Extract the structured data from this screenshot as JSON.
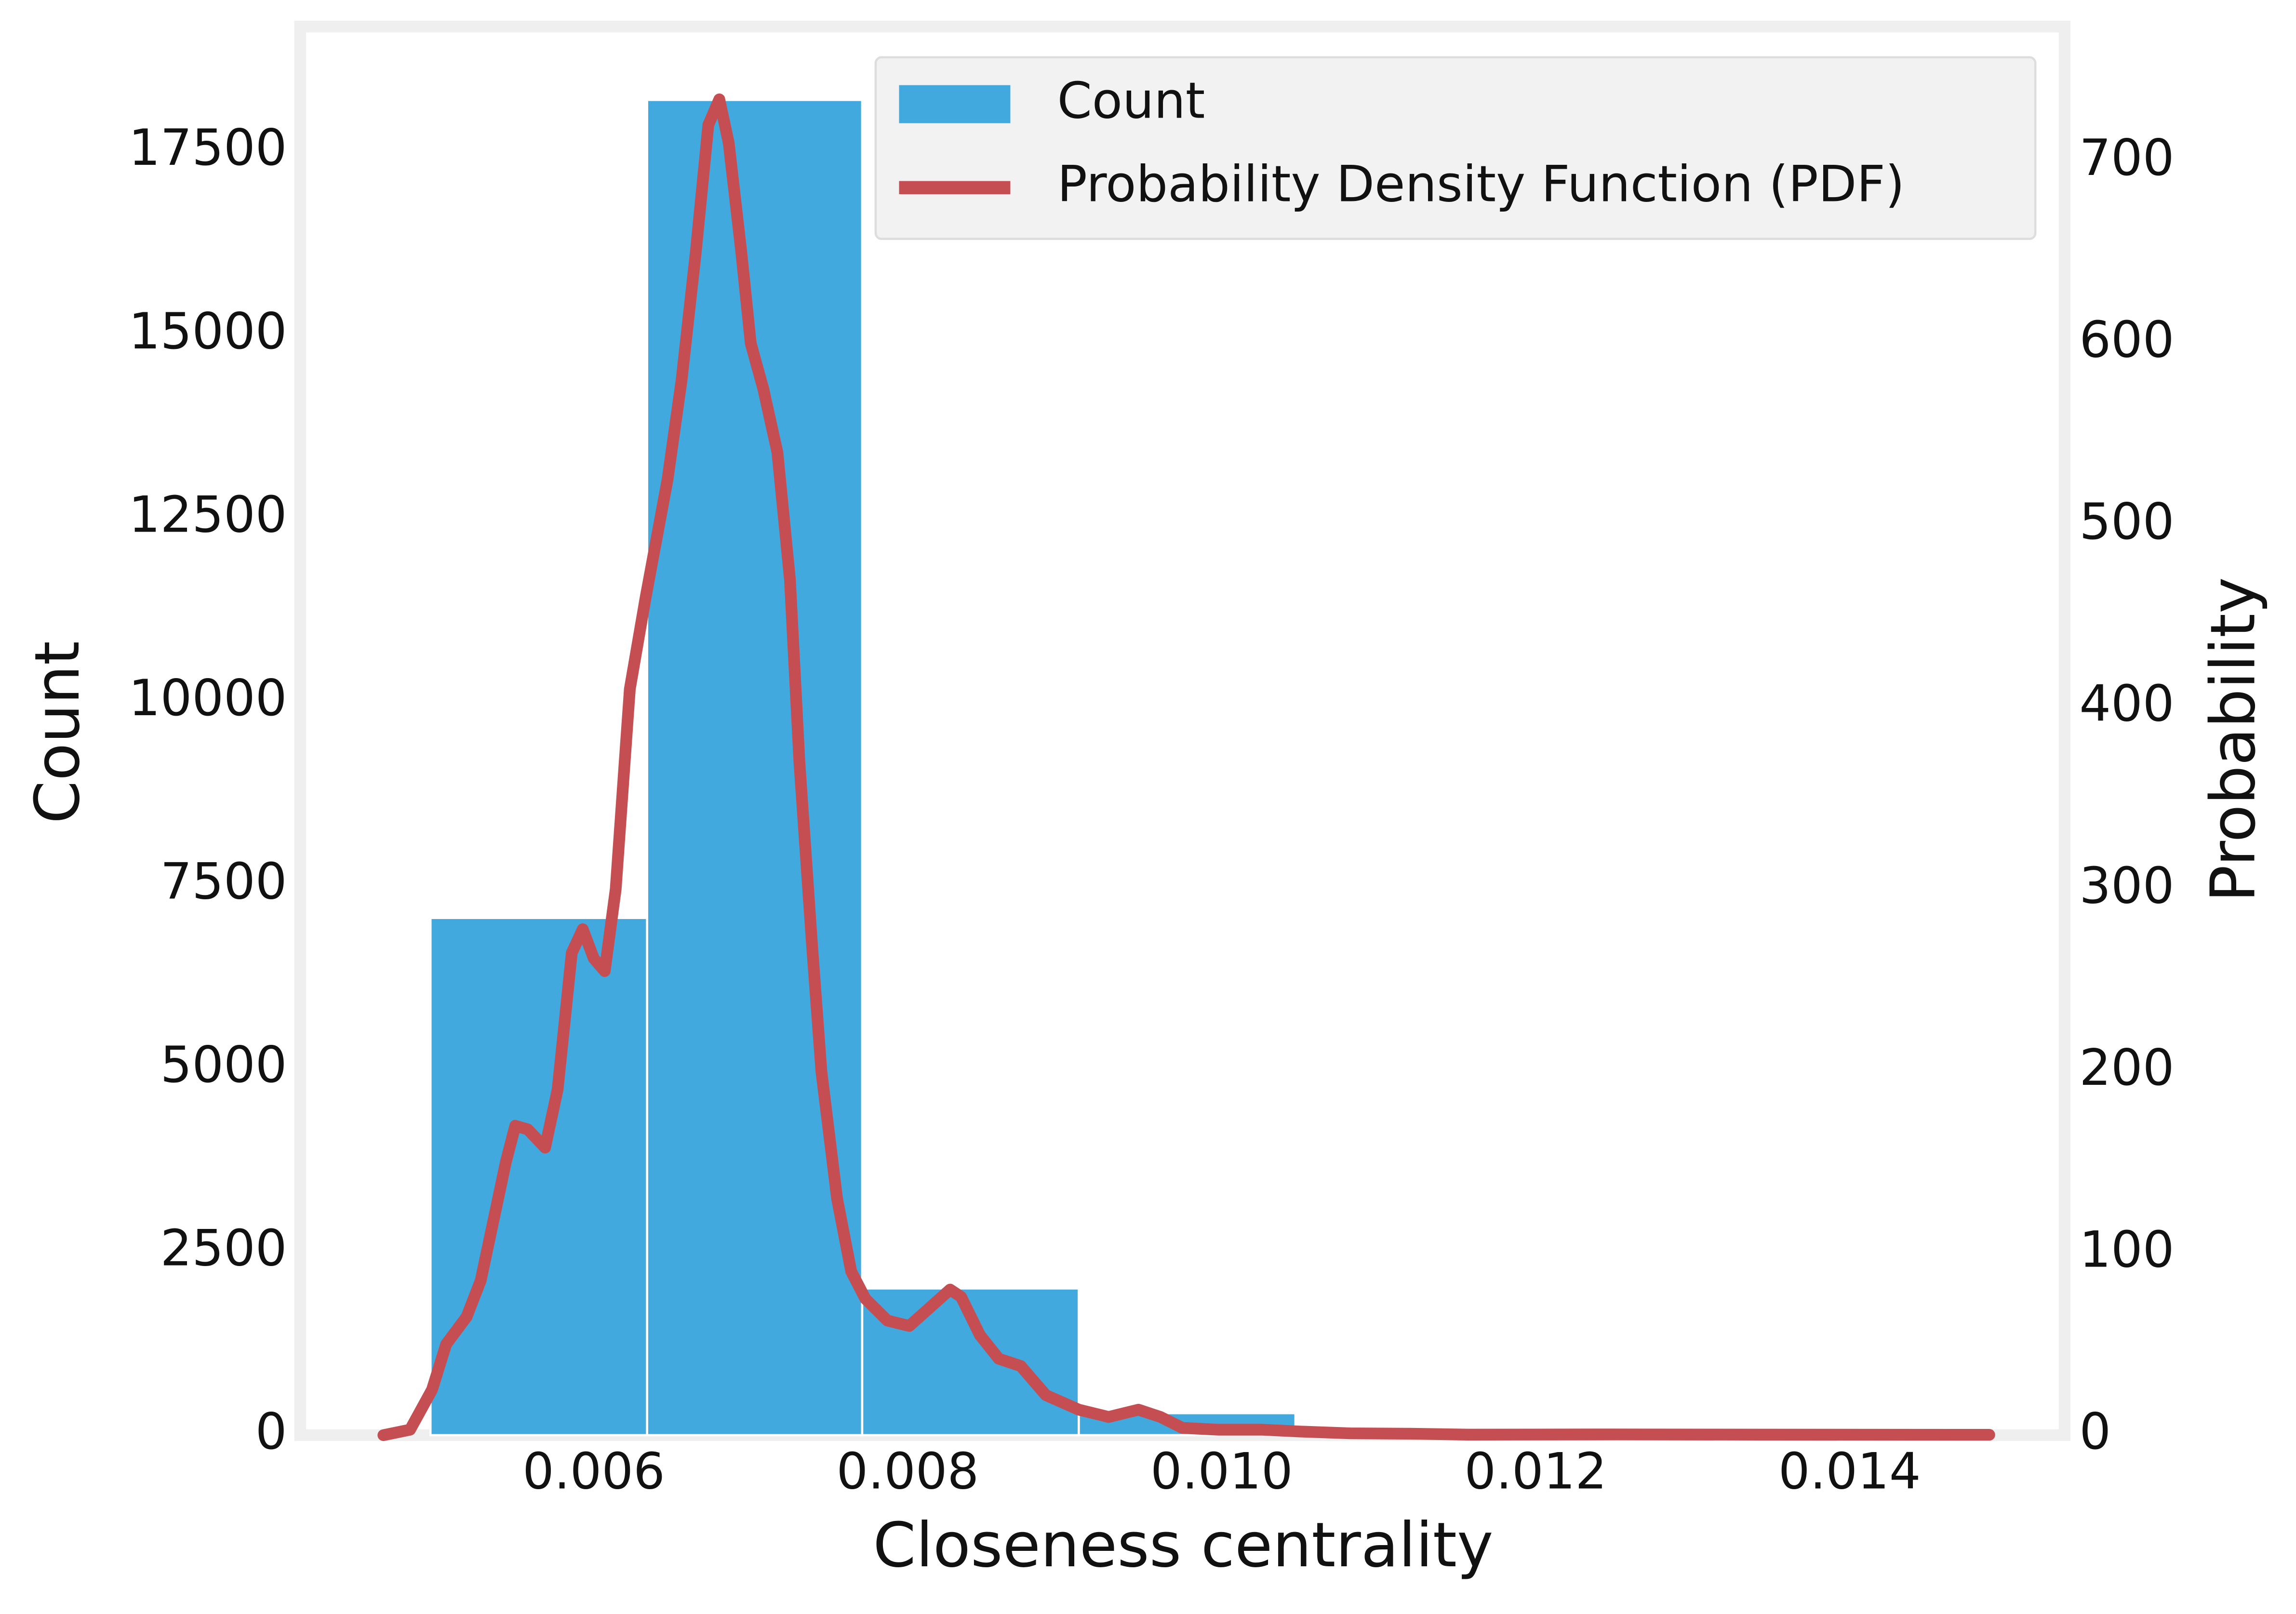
{
  "chart_data": {
    "type": "histogram",
    "xlabel": "Closeness centrality",
    "ylabel": "Count",
    "y2label": "Probability",
    "bins": [
      0.00496,
      0.00634,
      0.00771,
      0.00909,
      0.01047,
      0.01184,
      0.01322,
      0.01459
    ],
    "series": [
      {
        "name": "Count",
        "type": "histogram",
        "color": "#42a9df",
        "values": [
          7050,
          18200,
          2000,
          300,
          40,
          10,
          5
        ]
      },
      {
        "name": "Probability Density Function (PDF)",
        "type": "line",
        "axis": "y2",
        "color": "#c44e52",
        "x": [
          0.00466,
          0.00483,
          0.00497,
          0.00506,
          0.00519,
          0.00528,
          0.00544,
          0.0055,
          0.00558,
          0.00569,
          0.00577,
          0.00586,
          0.00593,
          0.006,
          0.00607,
          0.00614,
          0.00623,
          0.00633,
          0.00647,
          0.00656,
          0.00665,
          0.00673,
          0.0068,
          0.00686,
          0.00694,
          0.007,
          0.00708,
          0.00717,
          0.00725,
          0.00731,
          0.00739,
          0.00745,
          0.00755,
          0.00764,
          0.00773,
          0.00787,
          0.00801,
          0.00814,
          0.00827,
          0.00834,
          0.00846,
          0.00858,
          0.00872,
          0.00888,
          0.00909,
          0.00928,
          0.00947,
          0.00961,
          0.00975,
          0.00998,
          0.01026,
          0.0105,
          0.01082,
          0.0112,
          0.01157,
          0.01251,
          0.01345,
          0.01489
        ],
        "values": [
          0,
          3,
          25,
          50,
          65,
          85,
          150,
          170,
          168,
          158,
          190,
          265,
          278,
          262,
          255,
          300,
          410,
          460,
          525,
          580,
          650,
          720,
          734,
          710,
          650,
          600,
          575,
          540,
          470,
          370,
          270,
          200,
          130,
          90,
          75,
          63,
          60,
          70,
          80,
          76,
          55,
          42,
          38,
          22,
          14,
          10,
          14,
          10,
          4,
          3,
          3,
          2,
          1,
          0.8,
          0.3,
          0.4,
          0.3,
          0.2
        ]
      }
    ],
    "xlim": [
      0.00413,
      0.01537
    ],
    "ylim": [
      0,
      19200
    ],
    "y2lim": [
      0,
      774
    ],
    "xticks": [
      0.006,
      0.008,
      {
        "value": 0.01,
        "label": "0.010"
      },
      0.012,
      0.014
    ],
    "yticks": [
      0,
      2500,
      5000,
      7500,
      10000,
      12500,
      15000,
      17500
    ],
    "y2ticks": [
      0,
      100,
      200,
      300,
      400,
      500,
      600,
      700
    ],
    "legend": "upper right",
    "grid": false
  }
}
